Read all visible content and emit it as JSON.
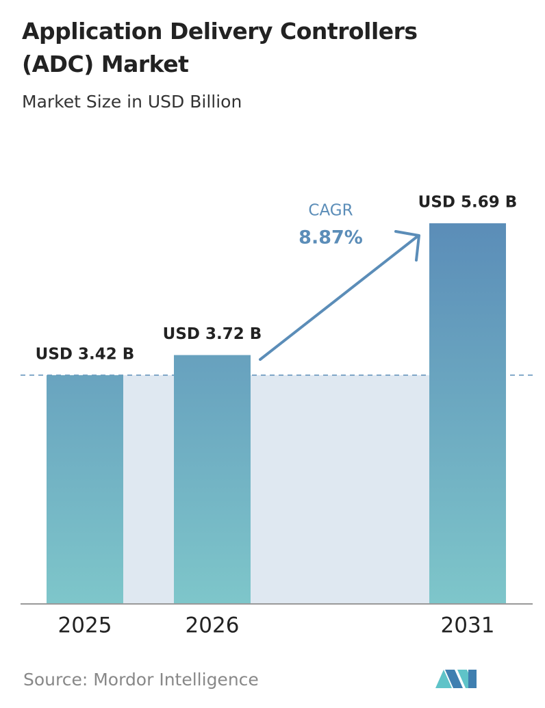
{
  "chart_data": {
    "type": "bar",
    "title": "Application Delivery Controllers (ADC) Market",
    "subtitle": "Market Size in USD Billion",
    "categories": [
      "2025",
      "2026",
      "2031"
    ],
    "values": [
      3.42,
      3.72,
      5.69
    ],
    "value_labels": [
      "USD 3.42 B",
      "USD 3.72 B",
      "USD 5.69 B"
    ],
    "annotations": {
      "cagr_label": "CAGR",
      "cagr_value": "8.87%"
    },
    "source": "Source: Mordor Intelligence",
    "color": "#5b8db8"
  }
}
